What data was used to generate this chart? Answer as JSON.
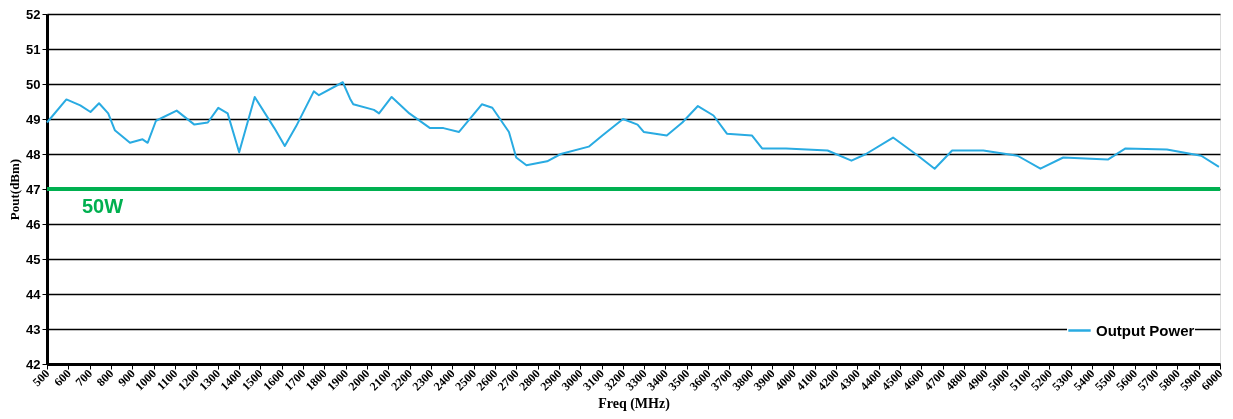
{
  "chart_data": {
    "type": "line",
    "xlabel": "Freq (MHz)",
    "ylabel": "Pout(dBm)",
    "xlim": [
      500,
      6000
    ],
    "xticks": [
      500,
      600,
      700,
      800,
      900,
      1000,
      1100,
      1200,
      1300,
      1400,
      1500,
      1600,
      1700,
      1800,
      1900,
      2000,
      2100,
      2200,
      2300,
      2400,
      2500,
      2600,
      2700,
      2800,
      2900,
      3000,
      3100,
      3200,
      3300,
      3400,
      3500,
      3600,
      3700,
      3800,
      3900,
      4000,
      4100,
      4200,
      4300,
      4400,
      4500,
      4600,
      4700,
      4800,
      4900,
      5000,
      5100,
      5200,
      5300,
      5400,
      5500,
      5600,
      5700,
      5800,
      5900,
      6000
    ],
    "ylim": [
      42,
      52
    ],
    "yticks": [
      42,
      43,
      44,
      45,
      46,
      47,
      48,
      49,
      50,
      51,
      52
    ],
    "grid": "y",
    "legend": "bottom right",
    "line_style": "solid",
    "marker": "none",
    "series": [
      {
        "name": "Output Power",
        "color": "#29abe2",
        "x": [
          500,
          591,
          656,
          704,
          744,
          787,
          818,
          889,
          948,
          972,
          1011,
          1108,
          1191,
          1254,
          1303,
          1347,
          1401,
          1474,
          1566,
          1615,
          1668,
          1751,
          1775,
          1887,
          1921,
          1936,
          2033,
          2057,
          2116,
          2199,
          2296,
          2359,
          2432,
          2539,
          2588,
          2666,
          2700,
          2748,
          2845,
          2909,
          3040,
          3104,
          3201,
          3269,
          3298,
          3406,
          3479,
          3552,
          3625,
          3688,
          3805,
          3853,
          3965,
          4160,
          4272,
          4340,
          4467,
          4584,
          4662,
          4744,
          4890,
          5051,
          5158,
          5265,
          5474,
          5557,
          5751,
          5912,
          5995
        ],
        "values": [
          48.9,
          49.56,
          49.39,
          49.2,
          49.45,
          49.16,
          48.68,
          48.32,
          48.42,
          48.32,
          48.95,
          49.24,
          48.84,
          48.9,
          49.32,
          49.16,
          48.05,
          49.63,
          48.74,
          48.23,
          48.79,
          49.79,
          49.68,
          50.05,
          49.58,
          49.42,
          49.26,
          49.16,
          49.63,
          49.16,
          48.74,
          48.74,
          48.63,
          49.42,
          49.32,
          48.63,
          47.9,
          47.68,
          47.79,
          48.0,
          48.21,
          48.53,
          49.0,
          48.84,
          48.63,
          48.53,
          48.9,
          49.37,
          49.1,
          48.58,
          48.53,
          48.16,
          48.16,
          48.1,
          47.81,
          48.0,
          48.47,
          47.95,
          47.58,
          48.1,
          48.1,
          47.95,
          47.58,
          47.9,
          47.84,
          48.16,
          48.13,
          47.95,
          47.63
        ]
      }
    ],
    "ref_lines": [
      {
        "axis": "y",
        "value": 47,
        "label": "50W",
        "color": "#00b050",
        "line_style": "solid"
      }
    ]
  }
}
